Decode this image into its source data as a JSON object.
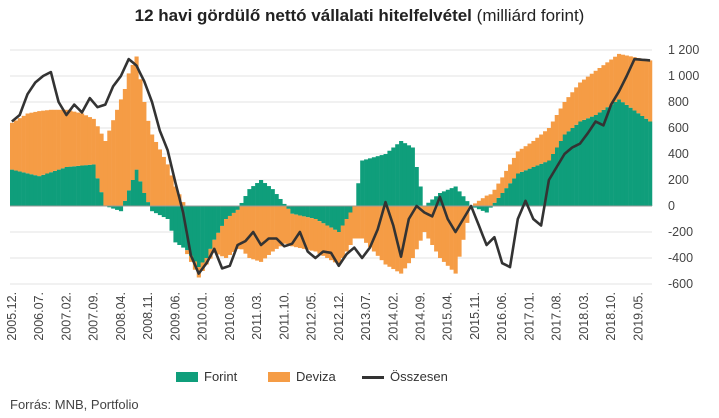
{
  "title": {
    "bold": "12 havi gördülő nettó vállalati hitelfelvétel",
    "light": "(milliárd forint)"
  },
  "source": "Forrás: MNB, Portfolio",
  "colors": {
    "forint": "#0f9e7b",
    "deviza": "#f59c45",
    "total": "#333333",
    "grid": "#e3e3e3",
    "zero": "#999999"
  },
  "legend": {
    "forint": "Forint",
    "deviza": "Deviza",
    "total": "Összesen"
  },
  "chart_data": {
    "type": "bar",
    "stacked": true,
    "grid": true,
    "legend_position": "bottom",
    "ylim": [
      -600,
      1200
    ],
    "yticks": [
      1200,
      1000,
      800,
      600,
      400,
      200,
      0,
      -200,
      -400,
      -600
    ],
    "ytick_labels": [
      "1 200",
      "1 000",
      "800",
      "600",
      "400",
      "200",
      "0",
      "-200",
      "-400",
      "-600"
    ],
    "xtick_labels": [
      "2005.12.",
      "2006.07.",
      "2007.02.",
      "2007.09.",
      "2008.04.",
      "2008.11.",
      "2009.06.",
      "2010.01.",
      "2010.08.",
      "2011.03.",
      "2011.10.",
      "2012.05.",
      "2012.12.",
      "2013.07.",
      "2014.02.",
      "2014.09.",
      "2015.04.",
      "2015.11.",
      "2016.06.",
      "2017.01.",
      "2017.08.",
      "2018.03.",
      "2018.10.",
      "2019.05."
    ],
    "period": {
      "start": "2005.12.",
      "end": "2019.08.",
      "frequency": "monthly"
    },
    "series": [
      {
        "name": "Forint",
        "kind": "bar",
        "values_by_knot": [
          [
            0,
            280
          ],
          [
            7,
            230
          ],
          [
            14,
            300
          ],
          [
            21,
            320
          ],
          [
            24,
            0
          ],
          [
            28,
            -40
          ],
          [
            32,
            280
          ],
          [
            34,
            100
          ],
          [
            36,
            -40
          ],
          [
            40,
            -100
          ],
          [
            42,
            -280
          ],
          [
            45,
            -340
          ],
          [
            48,
            -470
          ],
          [
            50,
            -400
          ],
          [
            52,
            -260
          ],
          [
            55,
            -100
          ],
          [
            58,
            -30
          ],
          [
            61,
            130
          ],
          [
            64,
            200
          ],
          [
            67,
            130
          ],
          [
            72,
            -60
          ],
          [
            78,
            -100
          ],
          [
            84,
            -200
          ],
          [
            88,
            0
          ],
          [
            90,
            350
          ],
          [
            96,
            400
          ],
          [
            100,
            500
          ],
          [
            103,
            450
          ],
          [
            106,
            0
          ],
          [
            110,
            100
          ],
          [
            114,
            150
          ],
          [
            118,
            0
          ],
          [
            122,
            -50
          ],
          [
            126,
            100
          ],
          [
            130,
            250
          ],
          [
            134,
            300
          ],
          [
            138,
            350
          ],
          [
            142,
            550
          ],
          [
            146,
            650
          ],
          [
            150,
            700
          ],
          [
            156,
            820
          ],
          [
            164,
            650
          ]
        ]
      },
      {
        "name": "Deviza",
        "kind": "bar",
        "values_by_knot": [
          [
            0,
            360
          ],
          [
            4,
            460
          ],
          [
            7,
            500
          ],
          [
            10,
            480
          ],
          [
            14,
            440
          ],
          [
            18,
            400
          ],
          [
            21,
            350
          ],
          [
            24,
            500
          ],
          [
            28,
            820
          ],
          [
            30,
            900
          ],
          [
            32,
            870
          ],
          [
            34,
            700
          ],
          [
            36,
            550
          ],
          [
            40,
            320
          ],
          [
            42,
            150
          ],
          [
            45,
            -30
          ],
          [
            48,
            -80
          ],
          [
            50,
            -50
          ],
          [
            52,
            -100
          ],
          [
            55,
            -300
          ],
          [
            58,
            -300
          ],
          [
            61,
            -400
          ],
          [
            64,
            -430
          ],
          [
            67,
            -350
          ],
          [
            72,
            -250
          ],
          [
            78,
            -250
          ],
          [
            84,
            -250
          ],
          [
            88,
            -250
          ],
          [
            90,
            -250
          ],
          [
            96,
            -450
          ],
          [
            100,
            -520
          ],
          [
            103,
            -400
          ],
          [
            106,
            -200
          ],
          [
            110,
            -400
          ],
          [
            114,
            -520
          ],
          [
            118,
            0
          ],
          [
            122,
            80
          ],
          [
            126,
            120
          ],
          [
            130,
            170
          ],
          [
            134,
            200
          ],
          [
            138,
            250
          ],
          [
            142,
            250
          ],
          [
            146,
            300
          ],
          [
            150,
            340
          ],
          [
            156,
            350
          ],
          [
            164,
            470
          ]
        ]
      },
      {
        "name": "Összesen",
        "kind": "line",
        "values_by_knot": [
          [
            0,
            650
          ],
          [
            2,
            700
          ],
          [
            4,
            860
          ],
          [
            6,
            950
          ],
          [
            8,
            1000
          ],
          [
            10,
            1030
          ],
          [
            12,
            800
          ],
          [
            14,
            700
          ],
          [
            16,
            780
          ],
          [
            18,
            720
          ],
          [
            20,
            830
          ],
          [
            22,
            760
          ],
          [
            24,
            780
          ],
          [
            26,
            920
          ],
          [
            28,
            1000
          ],
          [
            30,
            1130
          ],
          [
            32,
            1080
          ],
          [
            34,
            960
          ],
          [
            36,
            800
          ],
          [
            38,
            580
          ],
          [
            40,
            430
          ],
          [
            42,
            180
          ],
          [
            44,
            -50
          ],
          [
            46,
            -380
          ],
          [
            48,
            -520
          ],
          [
            50,
            -440
          ],
          [
            52,
            -330
          ],
          [
            54,
            -480
          ],
          [
            56,
            -460
          ],
          [
            58,
            -300
          ],
          [
            60,
            -270
          ],
          [
            62,
            -200
          ],
          [
            64,
            -300
          ],
          [
            66,
            -250
          ],
          [
            68,
            -250
          ],
          [
            70,
            -310
          ],
          [
            72,
            -290
          ],
          [
            74,
            -200
          ],
          [
            76,
            -350
          ],
          [
            78,
            -400
          ],
          [
            80,
            -350
          ],
          [
            82,
            -360
          ],
          [
            84,
            -460
          ],
          [
            86,
            -370
          ],
          [
            88,
            -320
          ],
          [
            90,
            -400
          ],
          [
            92,
            -320
          ],
          [
            94,
            -180
          ],
          [
            96,
            30
          ],
          [
            98,
            -150
          ],
          [
            100,
            -390
          ],
          [
            102,
            -100
          ],
          [
            104,
            0
          ],
          [
            106,
            -50
          ],
          [
            108,
            -80
          ],
          [
            110,
            70
          ],
          [
            112,
            -100
          ],
          [
            114,
            -200
          ],
          [
            116,
            -100
          ],
          [
            118,
            0
          ],
          [
            120,
            -150
          ],
          [
            122,
            -300
          ],
          [
            124,
            -240
          ],
          [
            126,
            -440
          ],
          [
            128,
            -470
          ],
          [
            130,
            -100
          ],
          [
            132,
            40
          ],
          [
            134,
            -100
          ],
          [
            136,
            -150
          ],
          [
            138,
            200
          ],
          [
            140,
            300
          ],
          [
            142,
            400
          ],
          [
            144,
            450
          ],
          [
            146,
            480
          ],
          [
            148,
            560
          ],
          [
            150,
            650
          ],
          [
            152,
            620
          ],
          [
            154,
            780
          ],
          [
            156,
            880
          ],
          [
            158,
            1000
          ],
          [
            160,
            1130
          ],
          [
            164,
            1120
          ]
        ]
      }
    ]
  }
}
